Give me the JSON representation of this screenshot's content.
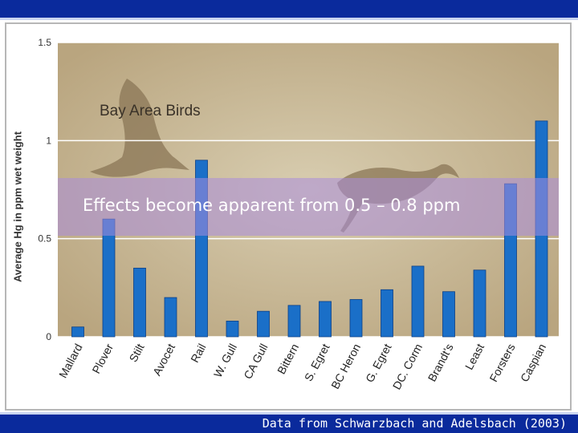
{
  "chart_data": {
    "type": "bar",
    "title": "",
    "inset_title": "Bay Area Birds",
    "ylabel": "Average Hg in ppm wet weight",
    "xlabel": "",
    "ylim": [
      0,
      1.5
    ],
    "yticks": [
      "0",
      "0.5",
      "1",
      "1.5"
    ],
    "ytick_values": [
      0,
      0.5,
      1,
      1.5
    ],
    "grid": true,
    "categories": [
      "Mallard",
      "Plover",
      "Stilt",
      "Avocet",
      "Rail",
      "W. Gull",
      "CA Gull",
      "Bittern",
      "S. Egret",
      "BC Heron",
      "G. Egret",
      "DC. Corm",
      "Brandt's",
      "Least",
      "Forsters",
      "Caspian"
    ],
    "values": [
      0.05,
      0.6,
      0.35,
      0.2,
      0.9,
      0.08,
      0.13,
      0.16,
      0.18,
      0.19,
      0.24,
      0.36,
      0.23,
      0.34,
      0.78,
      1.1
    ],
    "bar_color": "#1a6fc8",
    "plot_background": "#d3c7a8"
  },
  "banner": {
    "text": "Effects become apparent from 0.5 – 0.8 ppm"
  },
  "source": {
    "text": "Data from Schwarzbach and Adelsbach (2003)"
  },
  "colors": {
    "header_bar": "#0a2a9c",
    "banner_fill": "#aa8cdc"
  }
}
